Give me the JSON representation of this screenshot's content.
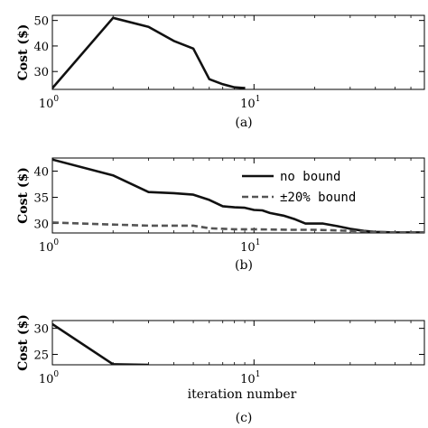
{
  "chart_data": [
    {
      "type": "line",
      "caption": "(a)",
      "ylabel": "Cost ($)",
      "xlabel": "",
      "xscale": "log",
      "xlim": [
        1,
        70
      ],
      "ylim": [
        23,
        52
      ],
      "xticks": [
        {
          "value": 1,
          "base": "10",
          "exp": "0"
        },
        {
          "value": 10,
          "base": "10",
          "exp": "1"
        }
      ],
      "yticks": [
        30,
        40,
        50
      ],
      "legend": [],
      "series": [
        {
          "name": "",
          "style": "solid",
          "color": "#111111",
          "x": [
            1,
            2,
            3,
            4,
            5,
            6,
            7,
            8,
            9
          ],
          "y": [
            23.5,
            51,
            47.5,
            42,
            39,
            27,
            25,
            23.8,
            23.5
          ]
        }
      ]
    },
    {
      "type": "line",
      "caption": "(b)",
      "ylabel": "Cost ($)",
      "xlabel": "",
      "xscale": "log",
      "xlim": [
        1,
        70
      ],
      "ylim": [
        28.2,
        42.5
      ],
      "xticks": [
        {
          "value": 1,
          "base": "10",
          "exp": "0"
        },
        {
          "value": 10,
          "base": "10",
          "exp": "1"
        }
      ],
      "yticks": [
        30,
        35,
        40
      ],
      "legend": [
        {
          "label": "no bound",
          "style": "solid"
        },
        {
          "label": "±20% bound",
          "style": "dashed"
        }
      ],
      "legend_position": "top-right",
      "series": [
        {
          "name": "no bound",
          "style": "solid",
          "color": "#111111",
          "x": [
            1,
            2,
            3,
            4,
            5,
            6,
            7,
            8,
            9,
            10,
            11,
            12,
            14,
            16,
            18,
            22,
            26,
            30,
            35,
            40,
            50,
            60,
            70
          ],
          "y": [
            42.2,
            39.2,
            36.0,
            35.8,
            35.5,
            34.5,
            33.3,
            33.1,
            33.0,
            32.6,
            32.5,
            32.0,
            31.5,
            30.8,
            30.0,
            30.0,
            29.5,
            29.0,
            28.6,
            28.4,
            28.3,
            28.3,
            28.3
          ]
        },
        {
          "name": "±20% bound",
          "style": "dashed",
          "color": "#555555",
          "x": [
            1,
            2,
            3,
            4,
            5,
            6,
            8,
            10,
            15,
            20,
            25,
            30,
            40,
            50,
            60,
            70
          ],
          "y": [
            30.2,
            29.8,
            29.6,
            29.6,
            29.6,
            29.1,
            28.9,
            28.9,
            28.8,
            28.8,
            28.7,
            28.6,
            28.4,
            28.3,
            28.3,
            28.3
          ]
        }
      ]
    },
    {
      "type": "line",
      "caption": "(c)",
      "ylabel": "Cost ($)",
      "xlabel": "iteration number",
      "xscale": "log",
      "xlim": [
        1,
        70
      ],
      "ylim": [
        23,
        31.5
      ],
      "xticks": [
        {
          "value": 1,
          "base": "10",
          "exp": "0"
        },
        {
          "value": 10,
          "base": "10",
          "exp": "1"
        }
      ],
      "yticks": [
        25,
        30
      ],
      "legend": [],
      "series": [
        {
          "name": "",
          "style": "solid",
          "color": "#111111",
          "x": [
            1,
            2,
            3
          ],
          "y": [
            30.8,
            23.1,
            23.0
          ]
        }
      ]
    }
  ]
}
